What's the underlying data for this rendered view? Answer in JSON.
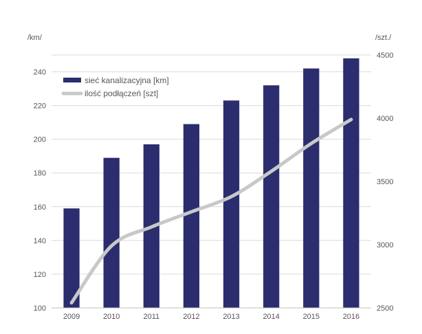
{
  "chart_data": {
    "type": "bar",
    "categories": [
      "2009",
      "2010",
      "2011",
      "2012",
      "2013",
      "2014",
      "2015",
      "2016"
    ],
    "series": [
      {
        "name": "sieć kanalizacyjna [km]",
        "type": "bar",
        "axis": "left",
        "color": "#2b2d6e",
        "values": [
          159,
          189,
          197,
          209,
          223,
          232,
          242,
          248
        ]
      },
      {
        "name": "ilość podłączeń [szt]",
        "type": "line",
        "axis": "right",
        "color": "#c8c8c8",
        "values": [
          2540,
          2990,
          3140,
          3260,
          3380,
          3580,
          3800,
          3990
        ]
      }
    ],
    "y_left": {
      "unit_label": "/km/",
      "ylim": [
        100,
        250
      ],
      "ticks": [
        "100",
        "120",
        "140",
        "160",
        "180",
        "200",
        "220",
        "240"
      ]
    },
    "y_right": {
      "unit_label": "/szt./",
      "ylim": [
        2500,
        4500
      ],
      "ticks": [
        "2500",
        "3000",
        "3500",
        "4000",
        "4500"
      ]
    },
    "grid": true,
    "legend_position": "top-left",
    "title": "",
    "xlabel": "",
    "ylabel": ""
  }
}
